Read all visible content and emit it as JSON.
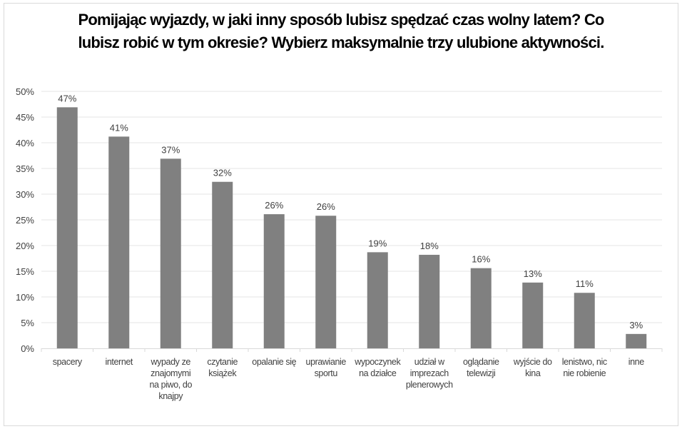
{
  "chart_data": {
    "type": "bar",
    "title_lines": [
      "Pomijając wyjazdy, w jaki inny sposób lubisz spędzać czas wolny latem? Co",
      "lubisz robić w tym okresie? Wybierz maksymalnie trzy ulubione aktywności."
    ],
    "categories": [
      [
        "spacery"
      ],
      [
        "internet"
      ],
      [
        "wypady ze",
        "znajomymi",
        "na piwo, do",
        "knajpy"
      ],
      [
        "czytanie",
        "książek"
      ],
      [
        "opalanie się"
      ],
      [
        "uprawianie",
        "sportu"
      ],
      [
        "wypoczynek",
        "na działce"
      ],
      [
        "udział w",
        "imprezach",
        "plenerowych"
      ],
      [
        "oglądanie",
        "telewizji"
      ],
      [
        "wyjście do",
        "kina"
      ],
      [
        "lenistwo, nic",
        "nie robienie"
      ],
      [
        "inne"
      ]
    ],
    "values": [
      46.9,
      41.2,
      36.9,
      32.4,
      26.1,
      25.8,
      18.7,
      18.2,
      15.6,
      12.8,
      10.8,
      2.8
    ],
    "data_labels": [
      "47%",
      "41%",
      "37%",
      "32%",
      "26%",
      "26%",
      "19%",
      "18%",
      "16%",
      "13%",
      "11%",
      "3%"
    ],
    "y_ticks": [
      "0%",
      "5%",
      "10%",
      "15%",
      "20%",
      "25%",
      "30%",
      "35%",
      "40%",
      "45%",
      "50%"
    ],
    "ylim": [
      0,
      50
    ],
    "grid": true,
    "legend": "none",
    "bar_color": "#808080",
    "grid_color": "#e6e6e6"
  }
}
